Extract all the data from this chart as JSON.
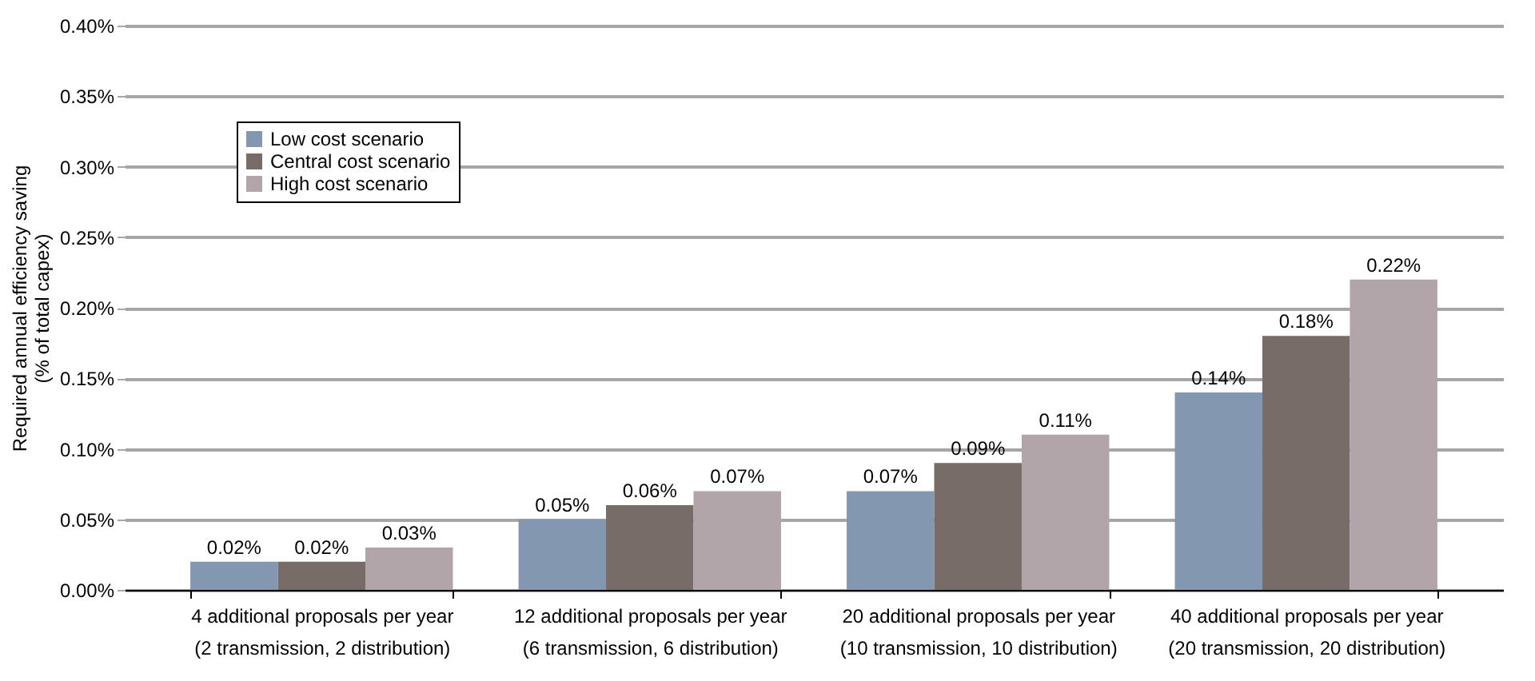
{
  "chart_data": {
    "type": "bar",
    "ylabel": "Required annual efficiency saving\n(% of total capex)",
    "categories": [
      "4 additional proposals per year\n(2 transmission, 2 distribution)",
      "12 additional proposals per year\n(6 transmission, 6 distribution)",
      "20 additional proposals per year\n(10 transmission, 10 distribution)",
      "40 additional proposals per year\n(20 transmission, 20 distribution)"
    ],
    "series": [
      {
        "name": "Low cost scenario",
        "color": "#8497b0",
        "values": [
          0.02,
          0.05,
          0.07,
          0.14
        ],
        "value_labels": [
          "0.02%",
          "0.05%",
          "0.07%",
          "0.14%"
        ]
      },
      {
        "name": "Central cost scenario",
        "color": "#776c68",
        "values": [
          0.02,
          0.06,
          0.09,
          0.18
        ],
        "value_labels": [
          "0.02%",
          "0.06%",
          "0.09%",
          "0.18%"
        ]
      },
      {
        "name": "High cost scenario",
        "color": "#b1a5aa",
        "values": [
          0.03,
          0.07,
          0.11,
          0.22
        ],
        "value_labels": [
          "0.03%",
          "0.07%",
          "0.11%",
          "0.22%"
        ]
      }
    ],
    "ylim": [
      0,
      0.4
    ],
    "yticks": [
      {
        "value": 0,
        "label": "0.00%"
      },
      {
        "value": 0.05,
        "label": "0.05%"
      },
      {
        "value": 0.1,
        "label": "0.10%"
      },
      {
        "value": 0.15,
        "label": "0.15%"
      },
      {
        "value": 0.2,
        "label": "0.20%"
      },
      {
        "value": 0.25,
        "label": "0.25%"
      },
      {
        "value": 0.3,
        "label": "0.30%"
      },
      {
        "value": 0.35,
        "label": "0.35%"
      },
      {
        "value": 0.4,
        "label": "0.40%"
      }
    ],
    "grid": "y",
    "legend": "top left"
  }
}
